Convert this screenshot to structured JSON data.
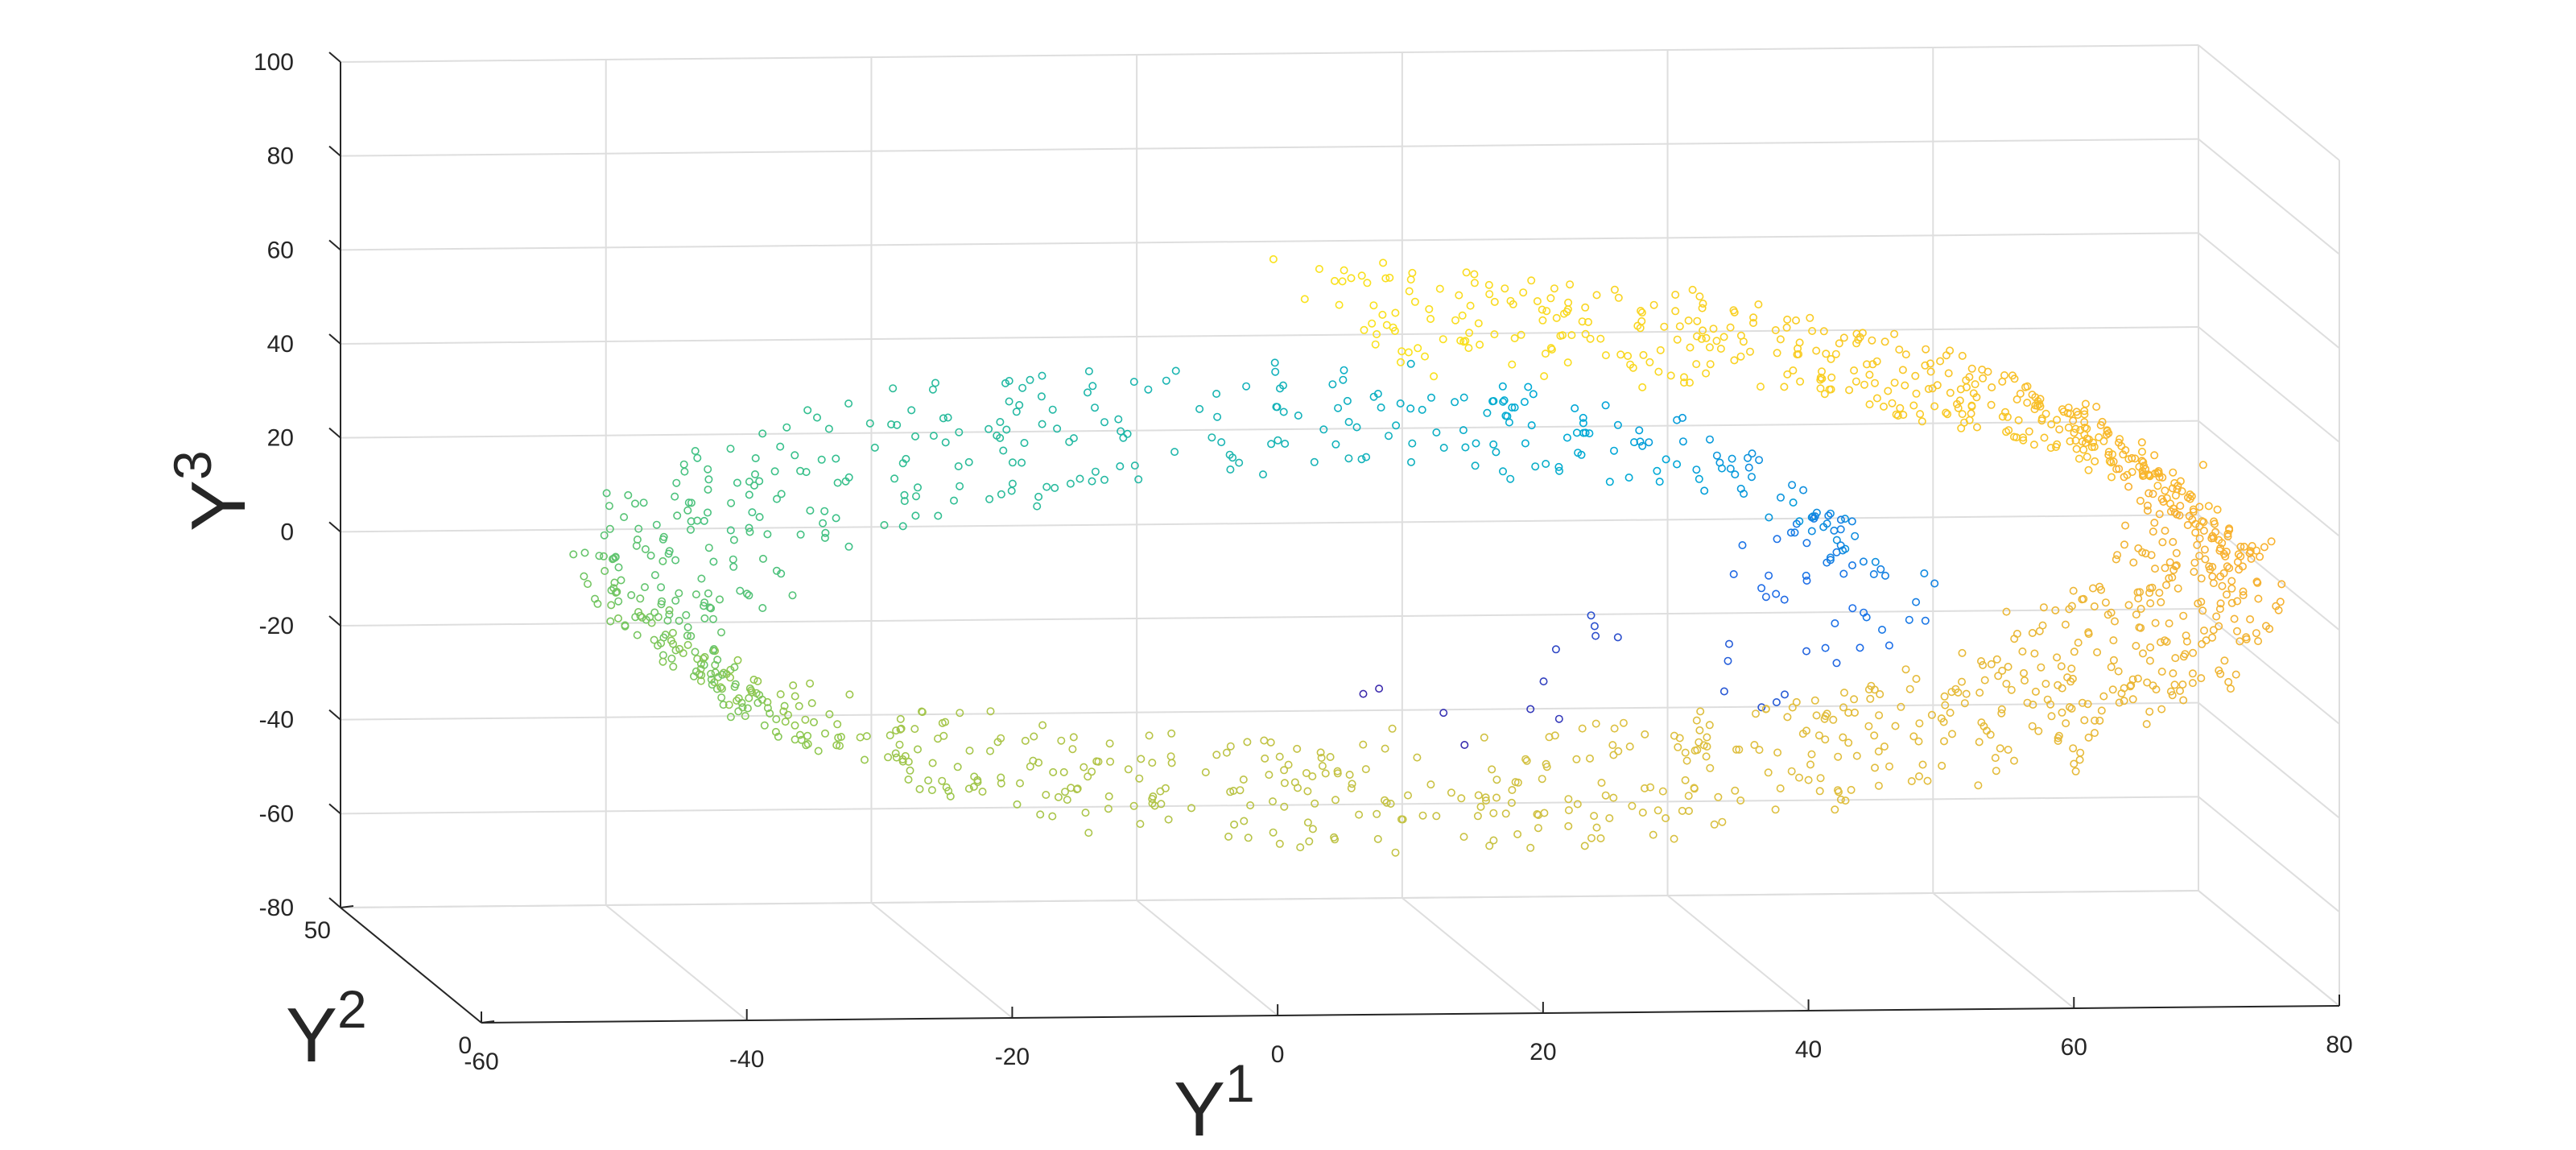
{
  "chart_data": {
    "type": "scatter",
    "title": "",
    "xlabel": "Y",
    "xlabel_sup": "1",
    "ylabel": "Y",
    "ylabel_sup": "2",
    "zlabel": "Y",
    "zlabel_sup": "3",
    "xlim": [
      -60,
      80
    ],
    "ylim": [
      0,
      50
    ],
    "zlim": [
      -80,
      100
    ],
    "x_ticks": [
      "-60",
      "-40",
      "-20",
      "0",
      "20",
      "40",
      "60",
      "80"
    ],
    "y_ticks": [
      "0",
      "50"
    ],
    "z_ticks": [
      "100",
      "80",
      "60",
      "40",
      "20",
      "0",
      "-20",
      "-40",
      "-60",
      "-80"
    ],
    "grid": true,
    "marker": "open-circle",
    "colormap": [
      "#3e26a8",
      "#1e6ee8",
      "#00aad6",
      "#36c08c",
      "#90c850",
      "#dcc040",
      "#f8b030",
      "#f9e21d"
    ],
    "manifold": "swiss-roll",
    "point_count": 1600
  }
}
